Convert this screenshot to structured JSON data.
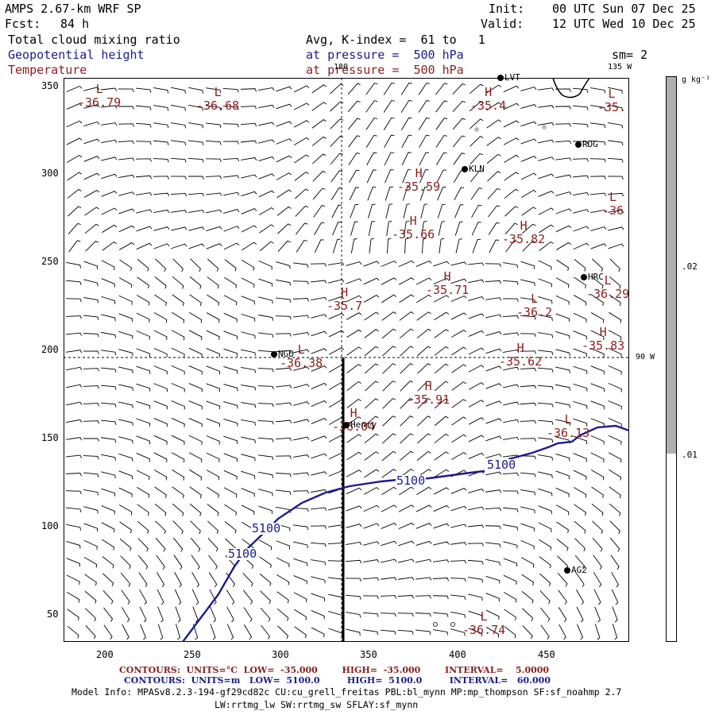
{
  "header": {
    "title": "AMPS 2.67-km WRF SP",
    "fcst_label": "Fcst:",
    "fcst_value": "84 h",
    "init_label": "Init:",
    "init_value": "00 UTC Sun 07 Dec 25",
    "valid_label": "Valid:",
    "valid_value": "12 UTC Wed 10 Dec 25",
    "field1": "Total cloud mixing ratio",
    "field2": "Geopotential height",
    "field3": "Temperature",
    "avg": "Avg, K-index =  61 to   1",
    "press1": "at pressure =  500 hPa",
    "press2": "at pressure =  500 hPa",
    "sm": "sm= 2"
  },
  "axes": {
    "x_ticks": [
      "200",
      "250",
      "300",
      "350",
      "400",
      "450"
    ],
    "y_ticks": [
      "350",
      "300",
      "250",
      "200",
      "150",
      "100",
      "50"
    ]
  },
  "meridians": {
    "top": "180",
    "top_right": "135 W",
    "right": "90 W"
  },
  "colorbar": {
    "unit": "g kg⁻¹",
    "ticks": [
      ".02",
      ".01"
    ],
    "fill": "#b0b0b0"
  },
  "stations": [
    "LVT",
    "KLN",
    "RDG",
    "HRC",
    "NGO",
    "Henry",
    "AG2"
  ],
  "pressure_systems": [
    {
      "type": "L",
      "value": "-36.79",
      "kind": "temp"
    },
    {
      "type": "L",
      "value": "-36.68",
      "kind": "temp"
    },
    {
      "type": "H",
      "value": "-35.4",
      "kind": "temp"
    },
    {
      "type": "L",
      "value": "-35.",
      "kind": "temp"
    },
    {
      "type": "H",
      "value": "-35.59",
      "kind": "temp"
    },
    {
      "type": "L",
      "value": "-36",
      "kind": "temp"
    },
    {
      "type": "H",
      "value": "-35.66",
      "kind": "temp"
    },
    {
      "type": "H",
      "value": "-35.82",
      "kind": "temp"
    },
    {
      "type": "L",
      "value": "-36.29",
      "kind": "temp"
    },
    {
      "type": "H",
      "value": "-35.71",
      "kind": "temp"
    },
    {
      "type": "H",
      "value": "-35.7",
      "kind": "temp"
    },
    {
      "type": "L",
      "value": "-36.2",
      "kind": "temp"
    },
    {
      "type": "H",
      "value": "-35.83",
      "kind": "temp"
    },
    {
      "type": "L",
      "value": "-36.38",
      "kind": "temp"
    },
    {
      "type": "H",
      "value": "-35.62",
      "kind": "temp"
    },
    {
      "type": "H",
      "value": "-35.91",
      "kind": "temp"
    },
    {
      "type": "H",
      "value": "-36.04",
      "kind": "temp"
    },
    {
      "type": "L",
      "value": "-36.13",
      "kind": "temp"
    },
    {
      "type": "L",
      "value": "-36.74",
      "kind": "temp"
    }
  ],
  "height_contour_label": "5100",
  "footer": {
    "line1": "CONTOURS:  UNITS=°C  LOW=  -35.000        HIGH=  -35.000        INTERVAL=    5.0000",
    "line2": "CONTOURS:  UNITS=m   LOW=  5100.0         HIGH=  5100.0         INTERVAL=   60.000",
    "line3": "Model Info: MPASv8.2.3-194-gf29cd82c CU:cu_grell_freitas PBL:bl_mynn MP:mp_thompson SF:sf_noahmp 2.7",
    "line4": "LW:rrtmg_lw SW:rrtmg_sw SFLAY:sf_mynn"
  },
  "colors": {
    "height": "#1c1c8c",
    "temperature": "#8b1e1e",
    "barb": "#000000"
  }
}
